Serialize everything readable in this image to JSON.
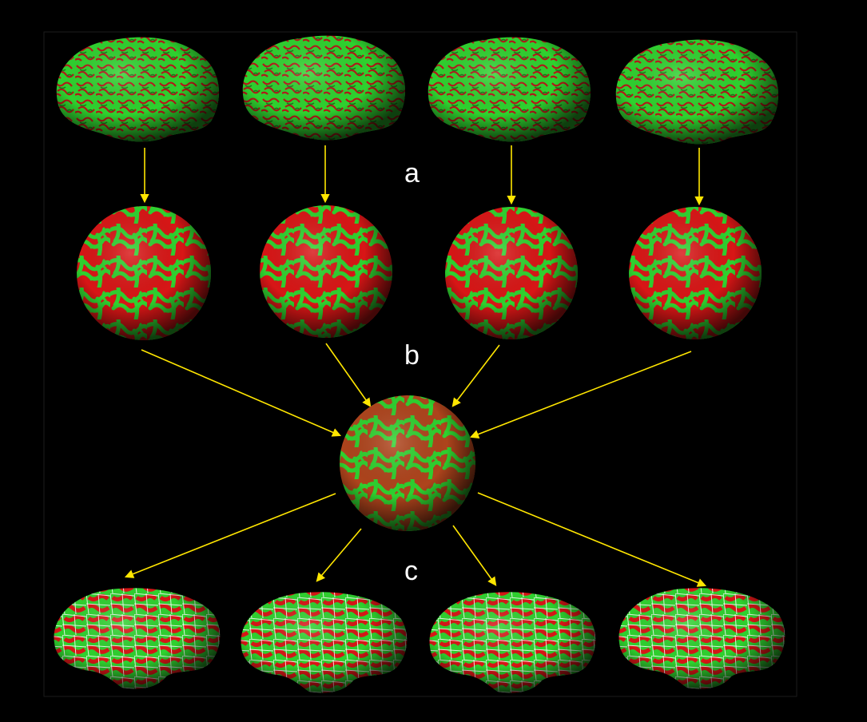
{
  "labels": {
    "a": "a",
    "b": "b",
    "c": "c"
  },
  "colors": {
    "background": "#000000",
    "gyri": "#2fd12f",
    "sulci": "#d81616",
    "arrow": "#ffe600",
    "grid": "#ffffff",
    "frame": "#1c1c1c"
  },
  "rows": {
    "folded_brains": [
      "brain-1",
      "brain-2",
      "brain-3",
      "brain-4"
    ],
    "individual_spheres": [
      "sphere-1",
      "sphere-2",
      "sphere-3",
      "sphere-4"
    ],
    "inflated_brains": [
      "inflated-1",
      "inflated-2",
      "inflated-3",
      "inflated-4"
    ]
  }
}
